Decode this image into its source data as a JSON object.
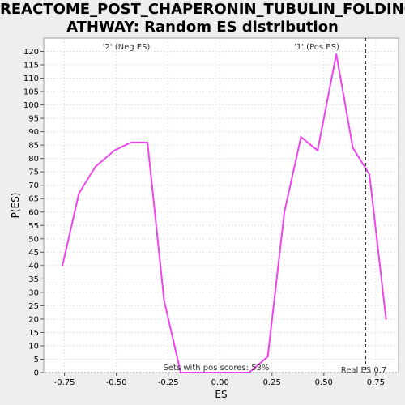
{
  "chart_data": {
    "type": "line",
    "title_line1": "REACTOME_POST_CHAPERONIN_TUBULIN_FOLDING_P",
    "title_line2": "ATHWAY: Random ES distribution",
    "xlabel": "ES",
    "ylabel": "P(ES)",
    "xlim": [
      -0.85,
      0.86
    ],
    "ylim": [
      0,
      125
    ],
    "x_ticks": [
      "-0.75",
      "-0.50",
      "-0.25",
      "0.00",
      "0.25",
      "0.50",
      "0.75"
    ],
    "x_tick_values": [
      -0.75,
      -0.5,
      -0.25,
      0.0,
      0.25,
      0.5,
      0.75
    ],
    "y_ticks": [
      0,
      5,
      10,
      15,
      20,
      25,
      30,
      35,
      40,
      45,
      50,
      55,
      60,
      65,
      70,
      75,
      80,
      85,
      90,
      95,
      100,
      105,
      110,
      115,
      120
    ],
    "grid": true,
    "series": [
      {
        "color": "#ee44ee",
        "x": [
          -0.76,
          -0.68,
          -0.6,
          -0.51,
          -0.43,
          -0.35,
          -0.27,
          -0.19,
          -0.1,
          -0.02,
          0.06,
          0.14,
          0.23,
          0.31,
          0.39,
          0.47,
          0.56,
          0.64,
          0.72,
          0.8
        ],
        "y": [
          40,
          67,
          77,
          83,
          86,
          86,
          27,
          0,
          0,
          0,
          0,
          0,
          6,
          60,
          88,
          83,
          119,
          84,
          74,
          20
        ]
      }
    ],
    "annotations": {
      "neg_label": "'2' (Neg ES)",
      "neg_color": "#3333cc",
      "pos_label": "'1' (Pos ES)",
      "pos_color": "#ee3333",
      "pos_score": "Sets with pos scores: 53%",
      "real_es": "Real ES 0.7",
      "real_es_value": 0.7
    }
  }
}
